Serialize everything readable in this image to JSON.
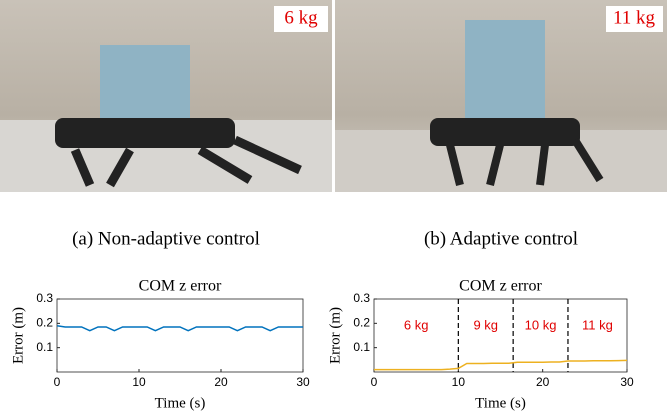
{
  "panels": [
    {
      "label": "6 kg",
      "caption": "(a) Non-adaptive control"
    },
    {
      "label": "11 kg",
      "caption": "(b) Adaptive control"
    }
  ],
  "chart_data": [
    {
      "type": "line",
      "title": "COM z error",
      "x_label": "Time (s)",
      "y_label": "Error (m)",
      "xlim": [
        0,
        30
      ],
      "ylim": [
        0,
        0.3
      ],
      "xticks": [
        0,
        10,
        20,
        30
      ],
      "yticks": [
        0.1,
        0.2,
        0.3
      ],
      "x": [
        0,
        1,
        2,
        3,
        4,
        5,
        6,
        7,
        8,
        9,
        10,
        11,
        12,
        13,
        14,
        15,
        16,
        17,
        18,
        19,
        20,
        21,
        22,
        23,
        24,
        25,
        26,
        27,
        28,
        29,
        30
      ],
      "series": [
        {
          "color": "#0072bd",
          "values": [
            0.19,
            0.185,
            0.185,
            0.185,
            0.17,
            0.185,
            0.185,
            0.17,
            0.185,
            0.185,
            0.185,
            0.185,
            0.17,
            0.185,
            0.185,
            0.185,
            0.17,
            0.185,
            0.185,
            0.185,
            0.185,
            0.185,
            0.17,
            0.185,
            0.185,
            0.185,
            0.17,
            0.185,
            0.185,
            0.185,
            0.185
          ]
        }
      ],
      "vlines": [],
      "annotations": []
    },
    {
      "type": "line",
      "title": "COM z error",
      "x_label": "Time (s)",
      "y_label": "Error (m)",
      "xlim": [
        0,
        30
      ],
      "ylim": [
        0,
        0.3
      ],
      "xticks": [
        0,
        10,
        20,
        30
      ],
      "yticks": [
        0.1,
        0.2,
        0.3
      ],
      "x": [
        0,
        1,
        2,
        3,
        4,
        5,
        6,
        7,
        8,
        9,
        10,
        11,
        12,
        13,
        14,
        15,
        16,
        17,
        18,
        19,
        20,
        21,
        22,
        23,
        24,
        25,
        26,
        27,
        28,
        29,
        30
      ],
      "series": [
        {
          "color": "#edb120",
          "values": [
            0.01,
            0.01,
            0.01,
            0.01,
            0.01,
            0.01,
            0.01,
            0.01,
            0.01,
            0.012,
            0.015,
            0.035,
            0.035,
            0.035,
            0.036,
            0.036,
            0.036,
            0.04,
            0.04,
            0.04,
            0.04,
            0.041,
            0.041,
            0.045,
            0.045,
            0.045,
            0.046,
            0.046,
            0.046,
            0.047,
            0.048
          ]
        }
      ],
      "vlines": [
        10,
        16.5,
        23
      ],
      "annotations": [
        "6 kg",
        "9 kg",
        "10 kg",
        "11 kg"
      ]
    }
  ]
}
